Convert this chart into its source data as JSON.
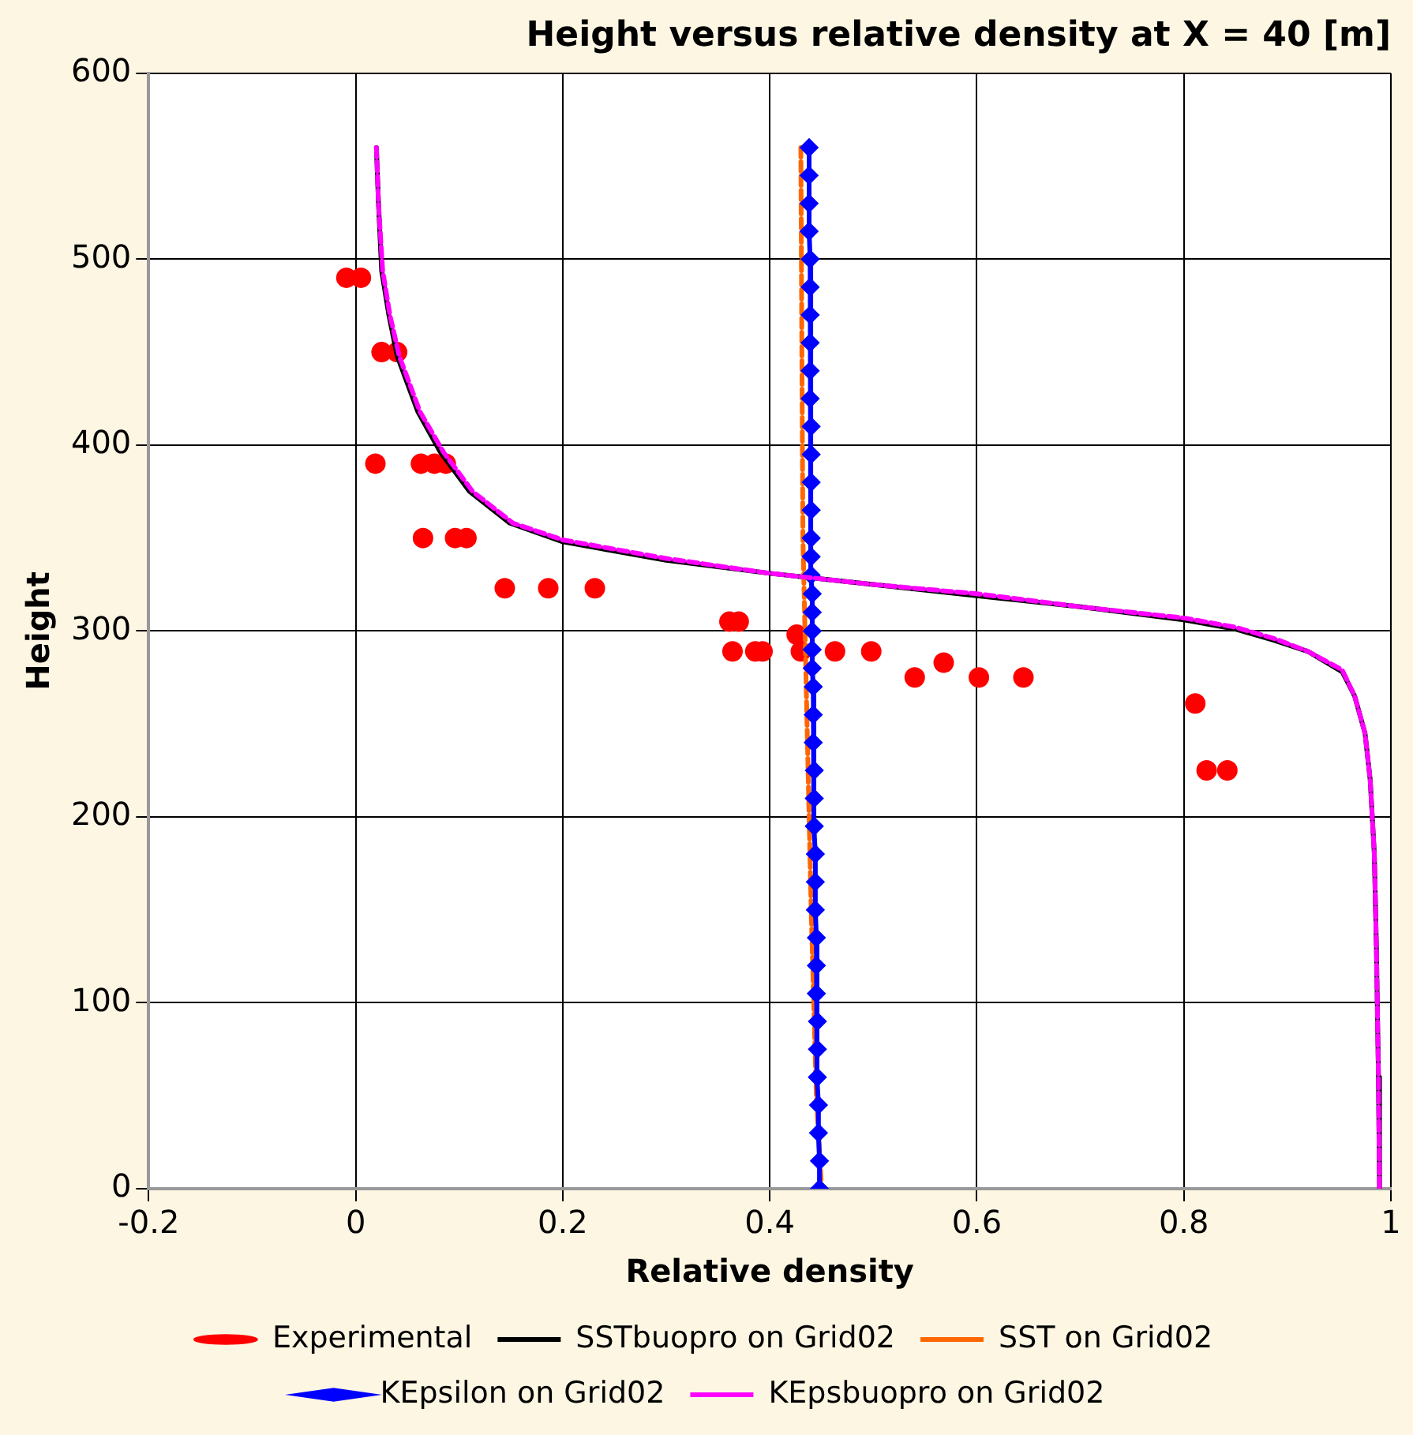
{
  "chart_data": {
    "type": "line",
    "title": "Height versus relative density at X = 40 [m]",
    "xlabel": "Relative density",
    "ylabel": "Height",
    "xlim": [
      -0.2,
      1
    ],
    "xticks": [
      -0.2,
      0,
      0.2,
      0.4,
      0.6,
      0.8,
      1
    ],
    "ylim": [
      0,
      600
    ],
    "yticks": [
      0,
      100,
      200,
      300,
      400,
      500,
      600
    ],
    "grid": true,
    "legend": "bottom",
    "series": [
      {
        "name": "Experimental",
        "type": "scatter",
        "marker": "circle",
        "color": "#ff0000",
        "x": [
          -0.009,
          0.005,
          0.025,
          0.04,
          0.019,
          0.063,
          0.076,
          0.087,
          0.065,
          0.096,
          0.107,
          0.144,
          0.186,
          0.231,
          0.361,
          0.37,
          0.364,
          0.386,
          0.393,
          0.426,
          0.43,
          0.463,
          0.498,
          0.54,
          0.568,
          0.602,
          0.645,
          0.811,
          0.822,
          0.842
        ],
        "values": [
          490,
          490,
          450,
          450,
          390,
          390,
          390,
          390,
          350,
          350,
          350,
          323,
          323,
          323,
          305,
          305,
          289,
          289,
          289,
          298,
          289,
          289,
          289,
          275,
          283,
          275,
          275,
          261,
          225,
          225
        ]
      },
      {
        "name": "SSTbuopro on Grid02",
        "type": "line",
        "marker": "none",
        "line_style": "solid",
        "color": "#000000",
        "x": [
          0.02,
          0.022,
          0.025,
          0.032,
          0.04,
          0.06,
          0.082,
          0.11,
          0.149,
          0.2,
          0.3,
          0.4,
          0.5,
          0.6,
          0.7,
          0.8,
          0.85,
          0.887,
          0.92,
          0.953,
          0.965,
          0.975,
          0.98,
          0.984,
          0.986,
          0.988,
          0.989
        ],
        "values": [
          560,
          530,
          494,
          470,
          448,
          418,
          396,
          375,
          358,
          348,
          338,
          331,
          325,
          319,
          313,
          306,
          301,
          295,
          289,
          278,
          265,
          245,
          220,
          180,
          130,
          60,
          0
        ]
      },
      {
        "name": "SST on Grid02",
        "type": "line",
        "marker": "none",
        "line_style": "dashed",
        "color": "#ff6600",
        "x": [
          0.43,
          0.431,
          0.432,
          0.434,
          0.436,
          0.44,
          0.445,
          0.45
        ],
        "values": [
          560,
          450,
          350,
          300,
          250,
          150,
          50,
          0
        ]
      },
      {
        "name": "KEpsilon on Grid02",
        "type": "line",
        "marker": "diamond",
        "line_style": "solid",
        "color": "#0000ff",
        "x": [
          0.438,
          0.438,
          0.438,
          0.438,
          0.439,
          0.439,
          0.439,
          0.439,
          0.439,
          0.439,
          0.44,
          0.44,
          0.44,
          0.44,
          0.44,
          0.44,
          0.44,
          0.441,
          0.441,
          0.441,
          0.441,
          0.441,
          0.442,
          0.442,
          0.442,
          0.443,
          0.443,
          0.443,
          0.444,
          0.444,
          0.444,
          0.445,
          0.445,
          0.445,
          0.446,
          0.446,
          0.446,
          0.447,
          0.447,
          0.448,
          0.448
        ],
        "values": [
          560,
          545,
          530,
          515,
          500,
          485,
          470,
          455,
          440,
          425,
          410,
          395,
          380,
          365,
          350,
          340,
          330,
          320,
          310,
          300,
          290,
          280,
          270,
          255,
          240,
          225,
          210,
          195,
          180,
          165,
          150,
          135,
          120,
          105,
          90,
          75,
          60,
          45,
          30,
          15,
          0
        ]
      },
      {
        "name": "KEpsbuopro on Grid02",
        "type": "line",
        "marker": "none",
        "line_style": "dashed",
        "color": "#ff00ff",
        "x": [
          0.02,
          0.022,
          0.026,
          0.033,
          0.042,
          0.062,
          0.085,
          0.113,
          0.152,
          0.2,
          0.3,
          0.4,
          0.5,
          0.6,
          0.7,
          0.8,
          0.85,
          0.887,
          0.92,
          0.953,
          0.965,
          0.975,
          0.98,
          0.984,
          0.986,
          0.988,
          0.989
        ],
        "values": [
          560,
          530,
          494,
          470,
          448,
          418,
          396,
          375,
          358,
          349,
          339,
          331,
          325,
          320,
          313,
          307,
          302,
          296,
          289,
          279,
          265,
          245,
          220,
          180,
          130,
          60,
          0
        ]
      }
    ]
  }
}
